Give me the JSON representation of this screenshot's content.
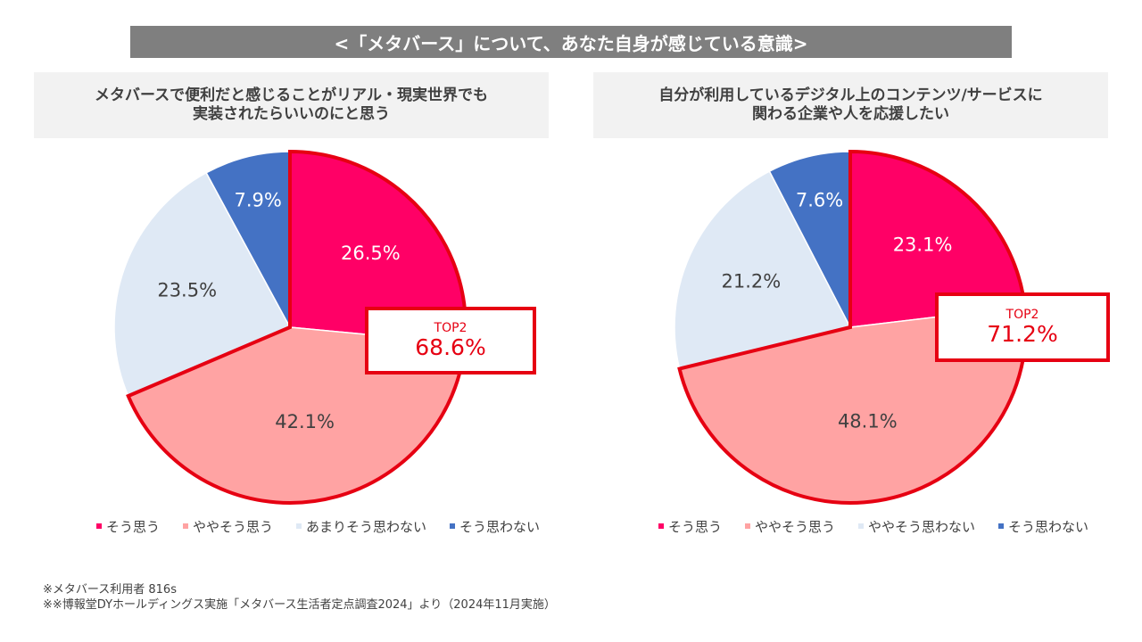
{
  "banner_title": "<「メタバース」について、あなた自身が感じている意識>",
  "colors": {
    "so_omou": "#ff0066",
    "yaya_so_omou": "#ffa3a3",
    "amari": "#dfe9f5",
    "so_omowanai": "#4472c4",
    "highlight": "#e60012"
  },
  "chart_data": [
    {
      "type": "pie",
      "title_lines": [
        "メタバースで便利だと感じることがリアル・現実世界でも",
        "実装されたらいいのにと思う"
      ],
      "categories": [
        "そう思う",
        "ややそう思う",
        "あまりそう思わない",
        "そう思わない"
      ],
      "values": [
        26.5,
        42.1,
        23.5,
        7.9
      ],
      "labels": [
        "26.5%",
        "42.1%",
        "23.5%",
        "7.9%"
      ],
      "legend_position": "bottom",
      "callout": {
        "label": "TOP2",
        "value": "68.6%"
      }
    },
    {
      "type": "pie",
      "title_lines": [
        "自分が利用しているデジタル上のコンテンツ/サービスに",
        "関わる企業や人を応援したい"
      ],
      "categories": [
        "そう思う",
        "ややそう思う",
        "ややそう思わない",
        "そう思わない"
      ],
      "values": [
        23.1,
        48.1,
        21.2,
        7.6
      ],
      "labels": [
        "23.1%",
        "48.1%",
        "21.2%",
        "7.6%"
      ],
      "legend_position": "bottom",
      "callout": {
        "label": "TOP2",
        "value": "71.2%"
      }
    }
  ],
  "footnotes": [
    "※メタバース利用者 816s",
    "※※博報堂DYホールディングス実施「メタバース生活者定点調査2024」より（2024年11月実施）"
  ]
}
